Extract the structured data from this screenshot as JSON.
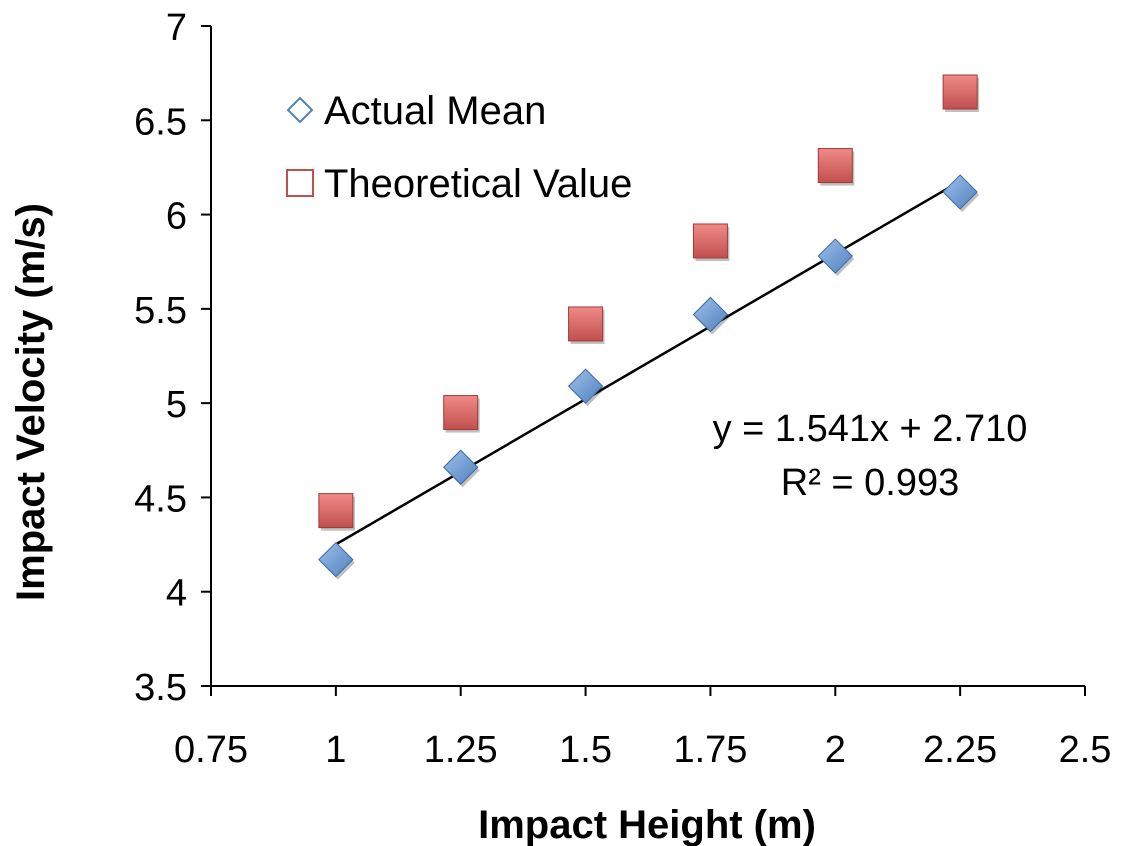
{
  "chart_data": {
    "type": "scatter",
    "xlabel": "Impact Height (m)",
    "ylabel": "Impact Velocity (m/s)",
    "xlim": [
      0.75,
      2.5
    ],
    "ylim": [
      3.5,
      7
    ],
    "x_ticks": [
      "0.75",
      "1",
      "1.25",
      "1.5",
      "1.75",
      "2",
      "2.25",
      "2.5"
    ],
    "y_ticks": [
      "3.5",
      "4",
      "4.5",
      "5",
      "5.5",
      "6",
      "6.5",
      "7"
    ],
    "grid": false,
    "legend_position": "top-left",
    "series": [
      {
        "name": "Actual Mean",
        "marker": "diamond",
        "color": "#4f81bd",
        "x": [
          1,
          1.25,
          1.5,
          1.75,
          2,
          2.25
        ],
        "y": [
          4.17,
          4.66,
          5.09,
          5.47,
          5.78,
          6.12
        ]
      },
      {
        "name": "Theoretical Value",
        "marker": "square",
        "color": "#c0504d",
        "x": [
          1,
          1.25,
          1.5,
          1.75,
          2,
          2.25
        ],
        "y": [
          4.43,
          4.95,
          5.42,
          5.86,
          6.26,
          6.65
        ]
      }
    ],
    "trendline": {
      "series": "Actual Mean",
      "slope": 1.541,
      "intercept": 2.71,
      "x_range": [
        1,
        2.25
      ],
      "equation": "y = 1.541x + 2.710",
      "r_squared": "R² = 0.993"
    }
  }
}
